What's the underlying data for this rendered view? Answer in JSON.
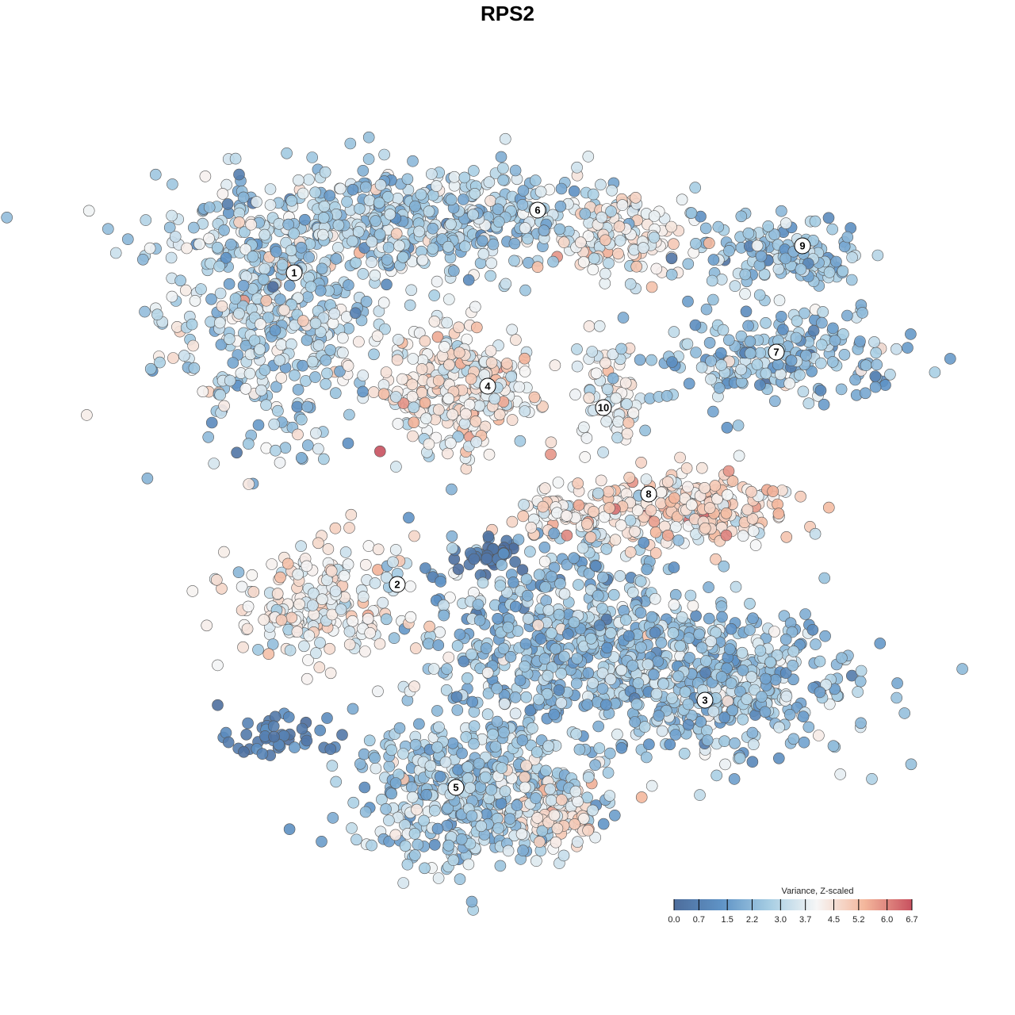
{
  "chart_data": {
    "type": "scatter",
    "title": "RPS2",
    "xlabel": "",
    "ylabel": "",
    "xlim": [
      -50,
      55
    ],
    "ylim": [
      -50,
      50
    ],
    "grid": false,
    "axes_visible": false,
    "color_scale": {
      "title": "Variance, Z-scaled",
      "ticks": [
        0.0,
        0.7,
        1.5,
        2.2,
        3.0,
        3.7,
        4.5,
        5.2,
        6.0,
        6.7
      ],
      "tick_labels": [
        "0.0",
        "0.7",
        "1.5",
        "2.2",
        "3.0",
        "3.7",
        "4.5",
        "5.2",
        "6.0",
        "6.7"
      ],
      "range": [
        0.0,
        6.7
      ],
      "colors": [
        "#4d6d9c",
        "#5f93c6",
        "#a6cde3",
        "#f6f6f6",
        "#f4b79c",
        "#c8515f"
      ],
      "placement": "bottom-right"
    },
    "clusters": [
      {
        "label": "1",
        "label_pos": [
          -26.9,
          29.6
        ],
        "center": [
          -30,
          24
        ],
        "spread": [
          8.5,
          10
        ],
        "n": 420,
        "value": 2.9,
        "value_sd": 0.9
      },
      {
        "label": "6",
        "label_pos": [
          3.8,
          37.5
        ],
        "center": [
          -12,
          36
        ],
        "spread": [
          17,
          4.5
        ],
        "n": 520,
        "value": 2.7,
        "value_sd": 0.8
      },
      {
        "label": "",
        "label_pos": null,
        "center": [
          14,
          34
        ],
        "spread": [
          5,
          3
        ],
        "n": 110,
        "value": 4.0,
        "value_sd": 0.7
      },
      {
        "label": "9",
        "label_pos": [
          37.2,
          33.0
        ],
        "center": [
          35,
          32
        ],
        "spread": [
          7,
          3
        ],
        "n": 140,
        "value": 2.5,
        "value_sd": 0.7
      },
      {
        "label": "7",
        "label_pos": [
          33.9,
          19.6
        ],
        "center": [
          34,
          19
        ],
        "spread": [
          10,
          4
        ],
        "n": 200,
        "value": 2.4,
        "value_sd": 0.8
      },
      {
        "label": "4",
        "label_pos": [
          -2.5,
          15.3
        ],
        "center": [
          -6,
          15
        ],
        "spread": [
          6,
          5
        ],
        "n": 280,
        "value": 4.1,
        "value_sd": 0.8
      },
      {
        "label": "10",
        "label_pos": [
          12.1,
          12.6
        ],
        "center": [
          12.5,
          14
        ],
        "spread": [
          2.5,
          4.5
        ],
        "n": 70,
        "value": 3.8,
        "value_sd": 0.6
      },
      {
        "label": "8",
        "label_pos": [
          17.8,
          1.7
        ],
        "center": [
          24,
          0
        ],
        "spread": [
          8,
          3
        ],
        "n": 200,
        "value": 4.6,
        "value_sd": 0.7
      },
      {
        "label": "",
        "label_pos": null,
        "center": [
          9,
          -1
        ],
        "spread": [
          5,
          2
        ],
        "n": 90,
        "value": 4.2,
        "value_sd": 0.6
      },
      {
        "label": "2",
        "label_pos": [
          -13.9,
          -9.7
        ],
        "center": [
          -24,
          -12
        ],
        "spread": [
          6.5,
          5
        ],
        "n": 200,
        "value": 4.0,
        "value_sd": 0.6
      },
      {
        "label": "",
        "label_pos": null,
        "center": [
          6,
          -16
        ],
        "spread": [
          11,
          8
        ],
        "n": 520,
        "value": 2.3,
        "value_sd": 0.8
      },
      {
        "label": "3",
        "label_pos": [
          24.9,
          -24.3
        ],
        "center": [
          26,
          -22
        ],
        "spread": [
          11,
          6
        ],
        "n": 480,
        "value": 2.5,
        "value_sd": 0.8
      },
      {
        "label": "5",
        "label_pos": [
          -6.5,
          -35.3
        ],
        "center": [
          -5,
          -36
        ],
        "spread": [
          9,
          6
        ],
        "n": 420,
        "value": 2.6,
        "value_sd": 0.7
      },
      {
        "label": "",
        "label_pos": null,
        "center": [
          5,
          -38
        ],
        "spread": [
          5,
          3
        ],
        "n": 110,
        "value": 4.3,
        "value_sd": 0.6
      },
      {
        "label": "",
        "label_pos": null,
        "center": [
          -29,
          -29
        ],
        "spread": [
          4,
          1.6
        ],
        "n": 45,
        "value": 0.6,
        "value_sd": 0.3
      },
      {
        "label": "",
        "label_pos": null,
        "center": [
          -2,
          -6
        ],
        "spread": [
          2.5,
          1.3
        ],
        "n": 40,
        "value": 0.3,
        "value_sd": 0.3
      }
    ]
  }
}
